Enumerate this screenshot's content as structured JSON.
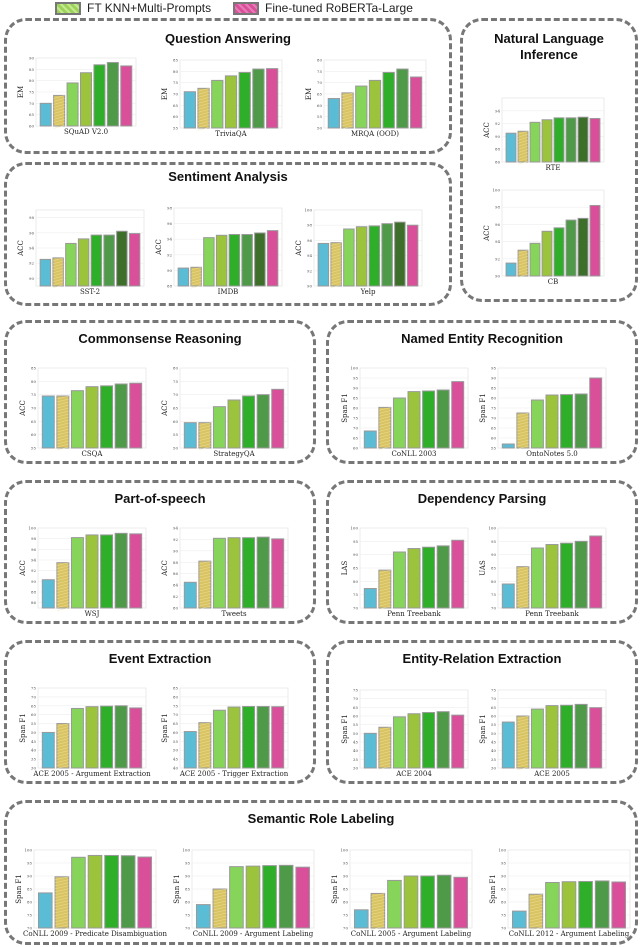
{
  "legend": {
    "items": [
      {
        "label": "FT KNN+Multi-Prompts",
        "color": "#9bd35a"
      },
      {
        "label": "Fine-tuned RoBERTa-Large",
        "color": "#d94f9a"
      }
    ]
  },
  "colors7": [
    "#5bbcd6",
    "#d9c464",
    "#86d45a",
    "#9bc43c",
    "#2fae2a",
    "#4e9a48",
    "#d94f9a"
  ],
  "colors8": [
    "#5bbcd6",
    "#d9c464",
    "#86d45a",
    "#9bc43c",
    "#2fae2a",
    "#4e9a48",
    "#3d6e2a",
    "#d94f9a"
  ],
  "groups": [
    {
      "id": "qa",
      "title": "Question Answering"
    },
    {
      "id": "nli",
      "title": "Natural Language Inference"
    },
    {
      "id": "sa",
      "title": "Sentiment Analysis"
    },
    {
      "id": "cr",
      "title": "Commonsense Reasoning"
    },
    {
      "id": "ner",
      "title": "Named Entity Recognition"
    },
    {
      "id": "pos",
      "title": "Part-of-speech"
    },
    {
      "id": "dp",
      "title": "Dependency Parsing"
    },
    {
      "id": "ee",
      "title": "Event Extraction"
    },
    {
      "id": "ere",
      "title": "Entity-Relation Extraction"
    },
    {
      "id": "srl",
      "title": "Semantic Role Labeling"
    }
  ],
  "chart_data": [
    {
      "type": "bar",
      "group": "qa",
      "xlabel": "SQuAD V2.0",
      "ylabel": "EM",
      "ylim": [
        60,
        90
      ],
      "ticks": [
        60,
        65,
        70,
        75,
        80,
        85,
        90
      ],
      "values": [
        70,
        73.5,
        79,
        83.5,
        87,
        88,
        86.5
      ]
    },
    {
      "type": "bar",
      "group": "qa",
      "xlabel": "TriviaQA",
      "ylabel": "EM",
      "ylim": [
        55,
        85
      ],
      "ticks": [
        55,
        60,
        65,
        70,
        75,
        80,
        85
      ],
      "values": [
        71,
        72.5,
        76,
        78,
        79.5,
        81,
        81.2
      ]
    },
    {
      "type": "bar",
      "group": "qa",
      "xlabel": "MRQA (OOD)",
      "ylabel": "EM",
      "ylim": [
        50,
        80
      ],
      "ticks": [
        50,
        55,
        60,
        65,
        70,
        75,
        80
      ],
      "values": [
        63,
        65.5,
        68.5,
        71,
        74.5,
        76,
        72.5
      ]
    },
    {
      "type": "bar",
      "group": "nli",
      "xlabel": "RTE",
      "ylabel": "ACC",
      "ylim": [
        86,
        96
      ],
      "ticks": [
        86,
        88,
        90,
        92,
        94
      ],
      "values": [
        90.5,
        90.8,
        92.2,
        92.6,
        92.9,
        92.9,
        93.0,
        92.8
      ]
    },
    {
      "type": "bar",
      "group": "nli",
      "xlabel": "CB",
      "ylabel": "ACC",
      "ylim": [
        90,
        100
      ],
      "ticks": [
        90,
        92,
        94,
        96,
        98,
        100
      ],
      "values": [
        91.5,
        93,
        93.8,
        95.2,
        95.6,
        96.5,
        96.7,
        98.2
      ]
    },
    {
      "type": "bar",
      "group": "sa",
      "xlabel": "SST-2",
      "ylabel": "ACC",
      "ylim": [
        89,
        99
      ],
      "ticks": [
        90,
        92,
        94,
        96,
        98
      ],
      "values": [
        92.5,
        92.7,
        94.6,
        95.2,
        95.7,
        95.7,
        96.2,
        95.9
      ]
    },
    {
      "type": "bar",
      "group": "sa",
      "xlabel": "IMDB",
      "ylabel": "ACC",
      "ylim": [
        88,
        98
      ],
      "ticks": [
        88,
        90,
        92,
        94,
        96,
        98
      ],
      "values": [
        90.3,
        90.4,
        94.2,
        94.5,
        94.6,
        94.6,
        94.8,
        95.1
      ]
    },
    {
      "type": "bar",
      "group": "sa",
      "xlabel": "Yelp",
      "ylabel": "ACC",
      "ylim": [
        90,
        100
      ],
      "ticks": [
        90,
        92,
        94,
        96,
        98,
        100
      ],
      "values": [
        95.6,
        95.7,
        97.5,
        97.8,
        97.9,
        98.2,
        98.4,
        98.0
      ]
    },
    {
      "type": "bar",
      "group": "cr",
      "xlabel": "CSQA",
      "ylabel": "ACC",
      "ylim": [
        55,
        85
      ],
      "ticks": [
        55,
        60,
        65,
        70,
        75,
        80,
        85
      ],
      "values": [
        74.5,
        74.5,
        76.5,
        78,
        78.3,
        79,
        79.3
      ]
    },
    {
      "type": "bar",
      "group": "cr",
      "xlabel": "StrategyQA",
      "ylabel": "ACC",
      "ylim": [
        50,
        80
      ],
      "ticks": [
        50,
        55,
        60,
        65,
        70,
        75,
        80
      ],
      "values": [
        59.5,
        59.5,
        65.5,
        68,
        69.5,
        70,
        72
      ]
    },
    {
      "type": "bar",
      "group": "ner",
      "xlabel": "CoNLL 2003",
      "ylabel": "Span F1",
      "ylim": [
        60,
        100
      ],
      "ticks": [
        60,
        65,
        70,
        75,
        80,
        85,
        90,
        95,
        100
      ],
      "values": [
        68.5,
        80.3,
        85,
        88.2,
        88.5,
        89,
        93.2
      ]
    },
    {
      "type": "bar",
      "group": "ner",
      "xlabel": "OntoNotes 5.0",
      "ylabel": "Span F1",
      "ylim": [
        55,
        95
      ],
      "ticks": [
        55,
        60,
        65,
        70,
        75,
        80,
        85,
        90,
        95
      ],
      "values": [
        57,
        72.5,
        79,
        81.5,
        81.7,
        82,
        90
      ]
    },
    {
      "type": "bar",
      "group": "pos",
      "xlabel": "WSJ",
      "ylabel": "ACC",
      "ylim": [
        85,
        100
      ],
      "ticks": [
        86,
        88,
        90,
        92,
        94,
        96,
        98,
        100
      ],
      "values": [
        90.3,
        93.5,
        98.2,
        98.7,
        98.7,
        99,
        98.9
      ]
    },
    {
      "type": "bar",
      "group": "pos",
      "xlabel": "Tweets",
      "ylabel": "ACC",
      "ylim": [
        80,
        94
      ],
      "ticks": [
        80,
        82,
        84,
        86,
        88,
        90,
        92,
        94
      ],
      "values": [
        84.5,
        88.2,
        92.2,
        92.3,
        92.3,
        92.4,
        92.1
      ]
    },
    {
      "type": "bar",
      "group": "dp",
      "xlabel": "Penn Treebank",
      "ylabel": "LAS",
      "ylim": [
        70,
        100
      ],
      "ticks": [
        70,
        75,
        80,
        85,
        90,
        95,
        100
      ],
      "values": [
        77.3,
        84.2,
        91,
        92.3,
        92.8,
        93.3,
        95.4
      ]
    },
    {
      "type": "bar",
      "group": "dp",
      "xlabel": "Penn Treebank",
      "ylabel": "UAS",
      "ylim": [
        70,
        100
      ],
      "ticks": [
        70,
        75,
        80,
        85,
        90,
        95,
        100
      ],
      "values": [
        79,
        85.5,
        92.5,
        93.8,
        94.3,
        95,
        97
      ]
    },
    {
      "type": "bar",
      "group": "ee",
      "xlabel": "ACE 2005 - Argument Extraction",
      "ylabel": "Span F1",
      "ylim": [
        30,
        75
      ],
      "ticks": [
        30,
        35,
        40,
        45,
        50,
        55,
        60,
        65,
        70,
        75
      ],
      "values": [
        50,
        55,
        63.5,
        64.5,
        64.8,
        65,
        63.8
      ]
    },
    {
      "type": "bar",
      "group": "ee",
      "xlabel": "ACE 2005 - Trigger Extraction",
      "ylabel": "Span F1",
      "ylim": [
        40,
        85
      ],
      "ticks": [
        40,
        45,
        50,
        55,
        60,
        65,
        70,
        75,
        80,
        85
      ],
      "values": [
        60.5,
        65.5,
        72.5,
        74.3,
        74.6,
        74.6,
        74.5
      ]
    },
    {
      "type": "bar",
      "group": "ere",
      "xlabel": "ACE 2004",
      "ylabel": "Span F1",
      "ylim": [
        30,
        75
      ],
      "ticks": [
        30,
        35,
        40,
        45,
        50,
        55,
        60,
        65,
        70,
        75
      ],
      "values": [
        50,
        53.5,
        59.5,
        61.3,
        62,
        62.5,
        60.5
      ]
    },
    {
      "type": "bar",
      "group": "ere",
      "xlabel": "ACE 2005",
      "ylabel": "Span F1",
      "ylim": [
        30,
        75
      ],
      "ticks": [
        30,
        35,
        40,
        45,
        50,
        55,
        60,
        65,
        70,
        75
      ],
      "values": [
        56.5,
        60,
        64,
        66,
        66.2,
        66.7,
        64.8
      ]
    },
    {
      "type": "bar",
      "group": "srl",
      "xlabel": "CoNLL 2009 - Predicate Disambiguation",
      "ylabel": "Span F1",
      "ylim": [
        70,
        100
      ],
      "ticks": [
        70,
        75,
        80,
        85,
        90,
        95,
        100
      ],
      "values": [
        83.5,
        89.7,
        97.2,
        97.9,
        97.9,
        97.8,
        97.3
      ]
    },
    {
      "type": "bar",
      "group": "srl",
      "xlabel": "CoNLL 2009 - Argument Labeling",
      "ylabel": "Span F1",
      "ylim": [
        70,
        100
      ],
      "ticks": [
        70,
        75,
        80,
        85,
        90,
        95,
        100
      ],
      "values": [
        79,
        85,
        93.6,
        93.8,
        94,
        94.1,
        93.4
      ]
    },
    {
      "type": "bar",
      "group": "srl",
      "xlabel": "CoNLL 2005 - Argument Labeling",
      "ylabel": "Span F1",
      "ylim": [
        70,
        100
      ],
      "ticks": [
        70,
        75,
        80,
        85,
        90,
        95,
        100
      ],
      "values": [
        77,
        83.3,
        88.3,
        90,
        90,
        90.3,
        89.5
      ]
    },
    {
      "type": "bar",
      "group": "srl",
      "xlabel": "CoNLL 2012 - Argument Labeling",
      "ylabel": "Span F1",
      "ylim": [
        70,
        100
      ],
      "ticks": [
        70,
        75,
        80,
        85,
        90,
        95,
        100
      ],
      "values": [
        76.5,
        83,
        87.5,
        87.8,
        87.9,
        88.1,
        87.7
      ]
    }
  ]
}
